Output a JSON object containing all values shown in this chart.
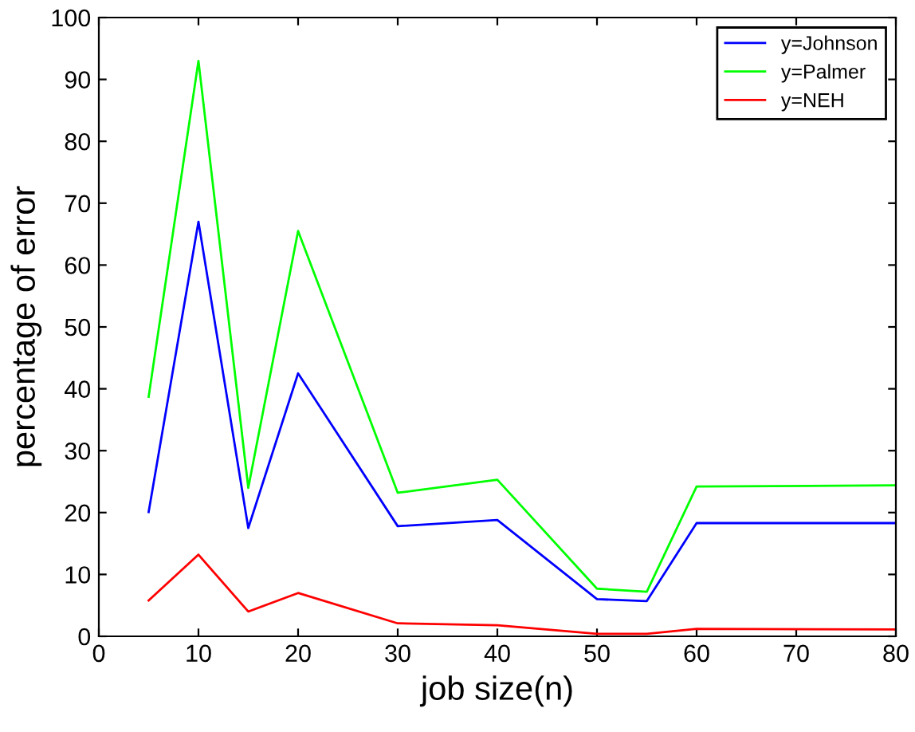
{
  "chart_data": {
    "type": "line",
    "xlabel": "job size(n)",
    "ylabel": "percentage of error",
    "x": [
      5,
      10,
      15,
      20,
      30,
      40,
      50,
      55,
      60,
      80
    ],
    "series": [
      {
        "name": "y=Johnson",
        "color": "#0000ff",
        "values": [
          20.1,
          67,
          17.5,
          42.5,
          17.8,
          18.8,
          6,
          5.7,
          18.3,
          18.3
        ]
      },
      {
        "name": "y=Palmer",
        "color": "#00ff00",
        "values": [
          38.7,
          93,
          24,
          65.5,
          23.2,
          25.3,
          7.7,
          7.2,
          24.2,
          24.4
        ]
      },
      {
        "name": "y=NEH",
        "color": "#ff0000",
        "values": [
          5.8,
          13.2,
          4,
          7,
          2.1,
          1.8,
          0.4,
          0.4,
          1.2,
          1.1
        ]
      }
    ],
    "xlim": [
      0,
      80
    ],
    "xticks": [
      0,
      10,
      20,
      30,
      40,
      50,
      60,
      70,
      80
    ],
    "ylim": [
      0,
      100
    ],
    "yticks": [
      0,
      10,
      20,
      30,
      40,
      50,
      60,
      70,
      80,
      90,
      100
    ],
    "legend": "top right",
    "grid": false,
    "marker": "none",
    "line_style": "solid"
  }
}
